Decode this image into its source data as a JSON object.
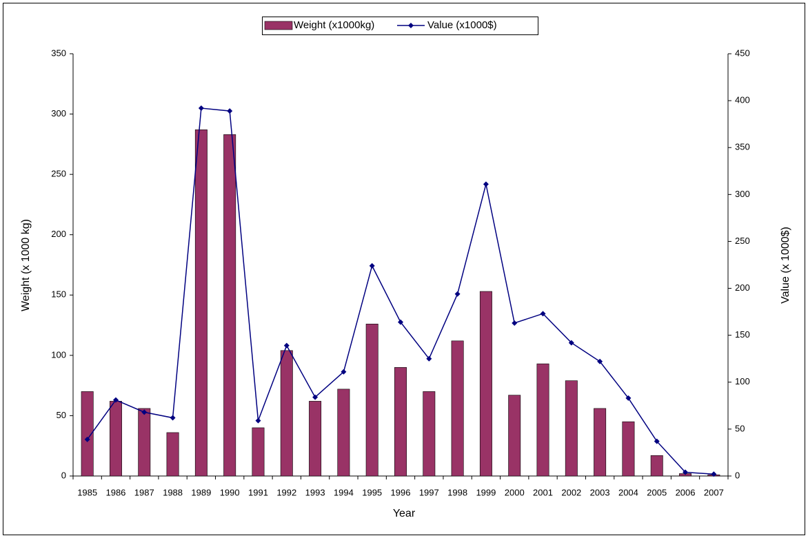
{
  "chart_data": {
    "type": "bar-line",
    "x_label": "Year",
    "y_label": "Weight (x 1000 kg)",
    "y2_label": "Value (x 1000$)",
    "categories": [
      "1985",
      "1986",
      "1987",
      "1988",
      "1989",
      "1990",
      "1991",
      "1992",
      "1993",
      "1994",
      "1995",
      "1996",
      "1997",
      "1998",
      "1999",
      "2000",
      "2001",
      "2002",
      "2003",
      "2004",
      "2005",
      "2006",
      "2007"
    ],
    "series": [
      {
        "name": "Weight (x1000kg)",
        "type": "bar",
        "color": "#993366",
        "values": [
          70,
          62,
          56,
          36,
          287,
          283,
          40,
          104,
          62,
          72,
          126,
          90,
          70,
          112,
          153,
          67,
          93,
          79,
          56,
          45,
          17,
          2,
          1
        ]
      },
      {
        "name": "Value (x1000$)",
        "type": "line",
        "axis": "y2",
        "color": "#000080",
        "values": [
          39,
          81,
          68,
          62,
          392,
          389,
          59,
          139,
          84,
          111,
          224,
          164,
          125,
          194,
          311,
          163,
          173,
          142,
          122,
          83,
          37,
          4,
          2
        ]
      }
    ],
    "ylim": [
      0,
      350
    ],
    "yticks": [
      0,
      50,
      100,
      150,
      200,
      250,
      300,
      350
    ],
    "y2lim": [
      0,
      450
    ],
    "y2ticks": [
      0,
      50,
      100,
      150,
      200,
      250,
      300,
      350,
      400,
      450
    ],
    "legend": "top"
  }
}
